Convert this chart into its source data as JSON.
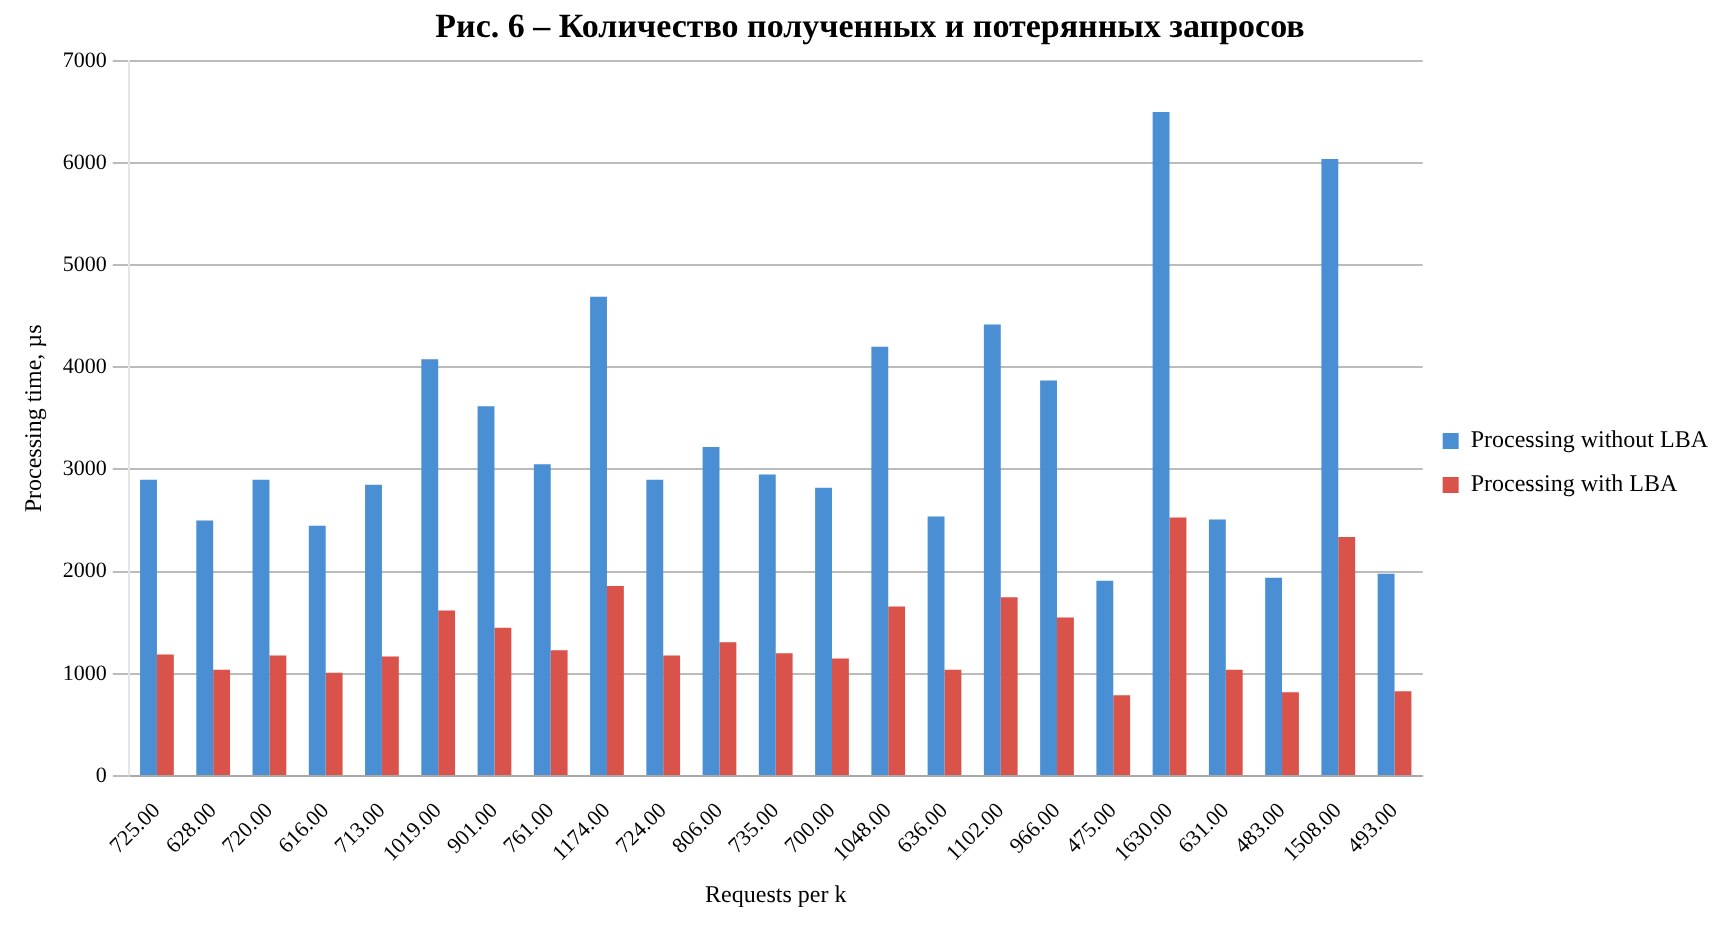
{
  "chart_data": {
    "type": "bar",
    "title": "Рис. 6 – Количество полученных и потерянных запросов",
    "xlabel": "Requests per k",
    "ylabel": "Processing time, µs",
    "categories": [
      "725.00",
      "628.00",
      "720.00",
      "616.00",
      "713.00",
      "1019.00",
      "901.00",
      "761.00",
      "1174.00",
      "724.00",
      "806.00",
      "735.00",
      "700.00",
      "1048.00",
      "636.00",
      "1102.00",
      "966.00",
      "475.00",
      "1630.00",
      "631.00",
      "483.00",
      "1508.00",
      "493.00"
    ],
    "series": [
      {
        "name": "Processing without LBA",
        "color": "#4a8fd4",
        "values": [
          2900,
          2500,
          2900,
          2450,
          2850,
          4080,
          3620,
          3050,
          4690,
          2900,
          3220,
          2950,
          2820,
          4200,
          2540,
          4420,
          3870,
          1910,
          6500,
          2510,
          1940,
          6040,
          1980
        ]
      },
      {
        "name": "Processing with LBA",
        "color": "#d9534a",
        "values": [
          1190,
          1040,
          1180,
          1010,
          1170,
          1620,
          1450,
          1230,
          1860,
          1180,
          1310,
          1200,
          1150,
          1660,
          1040,
          1750,
          1550,
          790,
          2530,
          1040,
          820,
          2340,
          830
        ]
      }
    ],
    "ylim": [
      0,
      7000
    ],
    "yticks": [
      0,
      1000,
      2000,
      3000,
      4000,
      5000,
      6000,
      7000
    ],
    "grid": "y",
    "legend": "right"
  }
}
